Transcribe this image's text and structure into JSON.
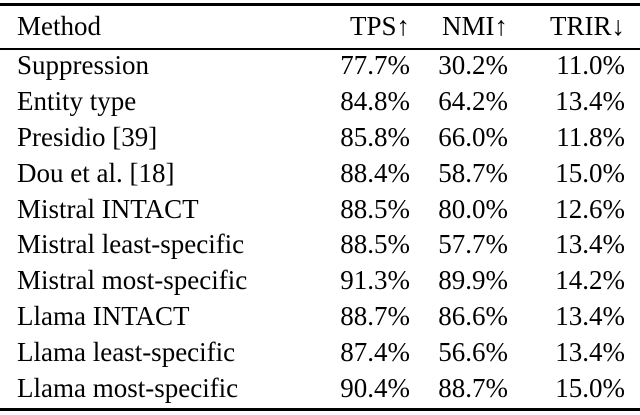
{
  "colors": {
    "background": "#ffffff",
    "text": "#000000",
    "rule": "#000000"
  },
  "table": {
    "columns": [
      "Method",
      "TPS↑",
      "NMI↑",
      "TRIR↓"
    ],
    "rows": [
      [
        "Suppression",
        "77.7%",
        "30.2%",
        "11.0%"
      ],
      [
        "Entity type",
        "84.8%",
        "64.2%",
        "13.4%"
      ],
      [
        "Presidio [39]",
        "85.8%",
        "66.0%",
        "11.8%"
      ],
      [
        "Dou et al. [18]",
        "88.4%",
        "58.7%",
        "15.0%"
      ],
      [
        "Mistral INTACT",
        "88.5%",
        "80.0%",
        "12.6%"
      ],
      [
        "Mistral least-specific",
        "88.5%",
        "57.7%",
        "13.4%"
      ],
      [
        "Mistral most-specific",
        "91.3%",
        "89.9%",
        "14.2%"
      ],
      [
        "Llama INTACT",
        "88.7%",
        "86.6%",
        "13.4%"
      ],
      [
        "Llama least-specific",
        "87.4%",
        "56.6%",
        "13.4%"
      ],
      [
        "Llama most-specific",
        "90.4%",
        "88.7%",
        "15.0%"
      ]
    ]
  }
}
